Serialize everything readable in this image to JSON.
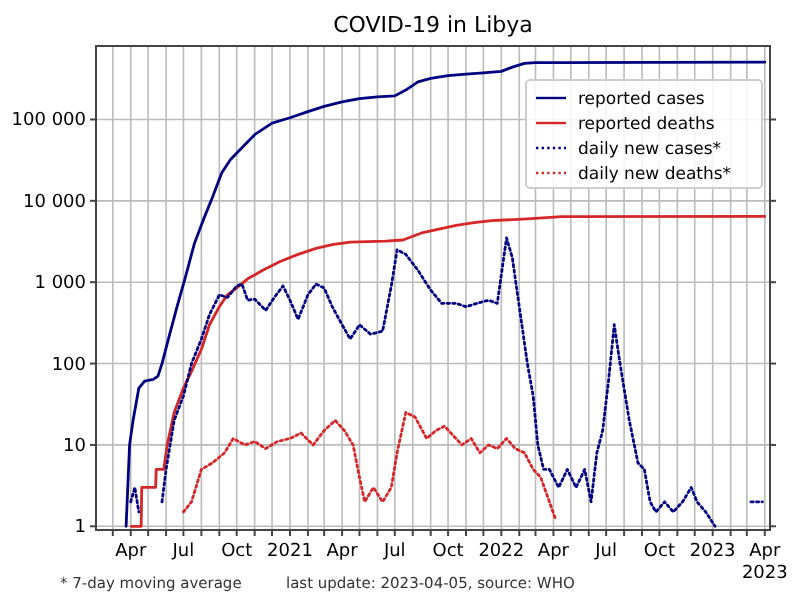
{
  "chart_data": {
    "type": "line",
    "title": "COVID-19 in Libya",
    "log": "y",
    "grid": true,
    "legend": "top right",
    "marker": "none",
    "annotations": [
      "* 7-day moving average",
      "last update: 2023-04-05, source: WHO"
    ],
    "xlim": [
      "2020-02-01",
      "2023-04-10"
    ],
    "ylim": [
      0.9,
      800000
    ],
    "yticks": [
      1,
      10,
      100,
      {
        "value": 1000,
        "label": "1 000"
      },
      {
        "value": 10000,
        "label": "10 000"
      },
      {
        "value": 100000,
        "label": "100 000"
      }
    ],
    "xticks": [
      {
        "value": "2020-03-01",
        "label": null
      },
      {
        "value": "2020-04-01",
        "label": "Apr"
      },
      {
        "value": "2020-05-01",
        "label": null
      },
      {
        "value": "2020-06-01",
        "label": null
      },
      {
        "value": "2020-07-01",
        "label": "Jul"
      },
      {
        "value": "2020-08-01",
        "label": null
      },
      {
        "value": "2020-09-01",
        "label": null
      },
      {
        "value": "2020-10-01",
        "label": "Oct"
      },
      {
        "value": "2020-11-01",
        "label": null
      },
      {
        "value": "2020-12-01",
        "label": null
      },
      {
        "value": "2021-01-01",
        "label": "2021"
      },
      {
        "value": "2021-02-01",
        "label": null
      },
      {
        "value": "2021-03-01",
        "label": null
      },
      {
        "value": "2021-04-01",
        "label": "Apr"
      },
      {
        "value": "2021-05-01",
        "label": null
      },
      {
        "value": "2021-06-01",
        "label": null
      },
      {
        "value": "2021-07-01",
        "label": "Jul"
      },
      {
        "value": "2021-08-01",
        "label": null
      },
      {
        "value": "2021-09-01",
        "label": null
      },
      {
        "value": "2021-10-01",
        "label": "Oct"
      },
      {
        "value": "2021-11-01",
        "label": null
      },
      {
        "value": "2021-12-01",
        "label": null
      },
      {
        "value": "2022-01-01",
        "label": "2022"
      },
      {
        "value": "2022-02-01",
        "label": null
      },
      {
        "value": "2022-03-01",
        "label": null
      },
      {
        "value": "2022-04-01",
        "label": "Apr"
      },
      {
        "value": "2022-05-01",
        "label": null
      },
      {
        "value": "2022-06-01",
        "label": null
      },
      {
        "value": "2022-07-01",
        "label": "Jul"
      },
      {
        "value": "2022-08-01",
        "label": null
      },
      {
        "value": "2022-09-01",
        "label": null
      },
      {
        "value": "2022-10-01",
        "label": "Oct"
      },
      {
        "value": "2022-11-01",
        "label": null
      },
      {
        "value": "2022-12-01",
        "label": null
      },
      {
        "value": "2023-01-01",
        "label": "2023"
      },
      {
        "value": "2023-02-01",
        "label": null
      },
      {
        "value": "2023-03-01",
        "label": null
      },
      {
        "value": "2023-04-01",
        "label": "Apr\n2023"
      }
    ],
    "series": [
      {
        "name": "reported cases",
        "color": "#000080",
        "line_style": "solid",
        "x": [
          "2020-03-24",
          "2020-03-30",
          "2020-04-05",
          "2020-04-15",
          "2020-04-25",
          "2020-05-10",
          "2020-05-18",
          "2020-05-25",
          "2020-06-05",
          "2020-06-20",
          "2020-07-05",
          "2020-07-20",
          "2020-08-05",
          "2020-08-20",
          "2020-09-05",
          "2020-09-20",
          "2020-10-10",
          "2020-11-01",
          "2020-12-01",
          "2021-01-01",
          "2021-02-01",
          "2021-03-01",
          "2021-04-01",
          "2021-05-01",
          "2021-06-01",
          "2021-07-01",
          "2021-07-20",
          "2021-08-10",
          "2021-09-01",
          "2021-10-01",
          "2021-11-01",
          "2021-12-01",
          "2022-01-01",
          "2022-01-20",
          "2022-02-10",
          "2022-03-01",
          "2022-04-01",
          "2023-04-01"
        ],
        "values": [
          1,
          10,
          20,
          50,
          61,
          64,
          70,
          100,
          200,
          500,
          1200,
          3000,
          6000,
          11000,
          22000,
          32000,
          45000,
          65000,
          90000,
          105000,
          125000,
          145000,
          165000,
          180000,
          190000,
          195000,
          230000,
          290000,
          320000,
          345000,
          360000,
          375000,
          390000,
          440000,
          490000,
          500000,
          501000,
          507000
        ]
      },
      {
        "name": "reported deaths",
        "color": "#d62728",
        "line_style": "solid",
        "x": [
          "2020-04-02",
          "2020-04-19",
          "2020-04-20",
          "2020-05-14",
          "2020-05-15",
          "2020-05-28",
          "2020-06-03",
          "2020-06-15",
          "2020-07-01",
          "2020-07-15",
          "2020-08-01",
          "2020-08-15",
          "2020-09-01",
          "2020-09-15",
          "2020-10-01",
          "2020-10-20",
          "2020-11-15",
          "2020-12-15",
          "2021-01-15",
          "2021-02-15",
          "2021-03-15",
          "2021-04-15",
          "2021-05-15",
          "2021-06-15",
          "2021-07-15",
          "2021-08-15",
          "2021-09-15",
          "2021-10-15",
          "2021-11-15",
          "2021-12-15",
          "2022-02-15",
          "2022-04-15",
          "2023-04-01"
        ],
        "values": [
          1,
          1,
          3,
          3,
          5,
          5,
          10,
          25,
          50,
          80,
          150,
          300,
          500,
          700,
          850,
          1100,
          1400,
          1800,
          2200,
          2600,
          2900,
          3100,
          3150,
          3200,
          3300,
          4000,
          4500,
          5000,
          5400,
          5700,
          6000,
          6400,
          6437
        ]
      },
      {
        "name": "daily new cases*",
        "color": "#000080",
        "line_style": "dotted",
        "x": [
          "2020-04-01",
          "2020-04-08",
          "2020-04-15",
          "2020-04-25",
          "2020-05-25",
          "2020-06-01",
          "2020-06-15",
          "2020-07-01",
          "2020-07-15",
          "2020-08-01",
          "2020-08-15",
          "2020-09-01",
          "2020-09-15",
          "2020-10-01",
          "2020-10-10",
          "2020-10-20",
          "2020-11-01",
          "2020-11-20",
          "2020-12-05",
          "2020-12-20",
          "2021-01-01",
          "2021-01-15",
          "2021-02-01",
          "2021-02-15",
          "2021-03-01",
          "2021-03-15",
          "2021-04-01",
          "2021-04-15",
          "2021-05-01",
          "2021-05-20",
          "2021-06-10",
          "2021-06-25",
          "2021-07-05",
          "2021-07-20",
          "2021-08-10",
          "2021-09-01",
          "2021-09-20",
          "2021-10-15",
          "2021-11-01",
          "2021-11-20",
          "2021-12-10",
          "2021-12-25",
          "2022-01-10",
          "2022-01-20",
          "2022-02-01",
          "2022-02-15",
          "2022-02-25",
          "2022-03-05",
          "2022-03-15",
          "2022-03-25",
          "2022-04-10",
          "2022-04-25",
          "2022-05-10",
          "2022-05-25",
          "2022-06-05",
          "2022-06-15",
          "2022-06-25",
          "2022-07-05",
          "2022-07-15",
          "2022-07-25",
          "2022-08-10",
          "2022-08-25",
          "2022-09-05",
          "2022-09-15",
          "2022-09-25",
          "2022-10-10",
          "2022-10-25",
          "2022-11-10",
          "2022-11-25",
          "2022-12-05",
          "2022-12-20",
          "2023-01-05",
          "2023-01-20",
          "2023-03-08",
          "2023-03-28"
        ],
        "values": [
          2,
          3,
          1.5,
          null,
          2,
          5,
          20,
          40,
          100,
          200,
          400,
          700,
          650,
          900,
          950,
          600,
          620,
          450,
          650,
          900,
          600,
          350,
          700,
          950,
          850,
          500,
          300,
          200,
          300,
          230,
          250,
          900,
          2500,
          2200,
          1400,
          800,
          550,
          550,
          500,
          550,
          600,
          550,
          3500,
          2000,
          500,
          100,
          40,
          10,
          5,
          5,
          3,
          5,
          3,
          5,
          2,
          8,
          15,
          60,
          300,
          100,
          20,
          6,
          5,
          2,
          1.5,
          2,
          1.5,
          2,
          3,
          2,
          1.5,
          1,
          null,
          2,
          2
        ]
      },
      {
        "name": "daily new deaths*",
        "color": "#d62728",
        "line_style": "dotted",
        "x": [
          "2020-07-01",
          "2020-07-15",
          "2020-08-01",
          "2020-08-20",
          "2020-09-10",
          "2020-09-25",
          "2020-10-15",
          "2020-11-01",
          "2020-11-20",
          "2020-12-10",
          "2021-01-01",
          "2021-01-20",
          "2021-02-10",
          "2021-03-01",
          "2021-03-20",
          "2021-04-05",
          "2021-04-20",
          "2021-05-01",
          "2021-05-10",
          "2021-05-25",
          "2021-06-10",
          "2021-06-25",
          "2021-07-05",
          "2021-07-20",
          "2021-08-05",
          "2021-08-25",
          "2021-09-10",
          "2021-09-25",
          "2021-10-10",
          "2021-10-25",
          "2021-11-10",
          "2021-11-25",
          "2021-12-10",
          "2021-12-25",
          "2022-01-10",
          "2022-01-25",
          "2022-02-10",
          "2022-02-25",
          "2022-03-10",
          "2022-03-25",
          "2022-04-05"
        ],
        "values": [
          1.5,
          2,
          5,
          6,
          8,
          12,
          10,
          11,
          9,
          11,
          12,
          14,
          10,
          15,
          20,
          15,
          10,
          4,
          2,
          3,
          2,
          3,
          8,
          25,
          22,
          12,
          15,
          17,
          13,
          10,
          12,
          8,
          10,
          9,
          12,
          9,
          8,
          5,
          4,
          2,
          1.2
        ]
      }
    ]
  }
}
